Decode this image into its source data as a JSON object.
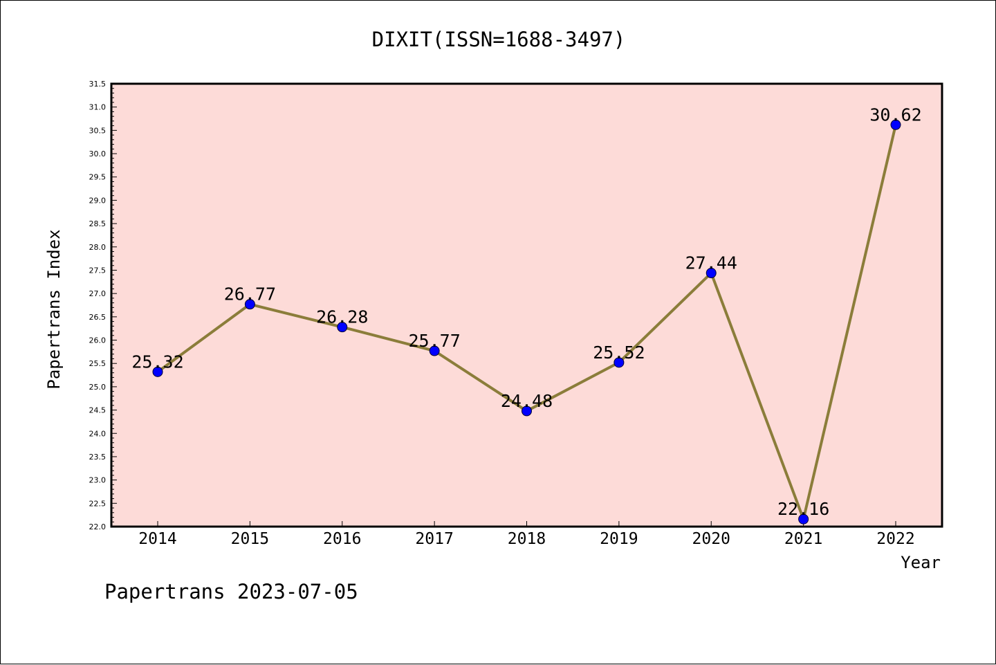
{
  "chart_data": {
    "type": "line",
    "title": "DIXIT(ISSN=1688-3497)",
    "xlabel": "Year",
    "ylabel": "Papertrans Index",
    "categories": [
      "2014",
      "2015",
      "2016",
      "2017",
      "2018",
      "2019",
      "2020",
      "2021",
      "2022"
    ],
    "series": [
      {
        "values": [
          25.32,
          26.77,
          26.28,
          25.77,
          24.48,
          25.52,
          27.44,
          22.16,
          30.62
        ]
      }
    ],
    "data_labels": [
      "25.32",
      "26.77",
      "26.28",
      "25.77",
      "24.48",
      "25.52",
      "27.44",
      "22.16",
      "30.62"
    ],
    "ylim": [
      22.0,
      31.5
    ],
    "y_ticks": [
      "22.0",
      "22.5",
      "23.0",
      "23.5",
      "24.0",
      "24.5",
      "25.0",
      "25.5",
      "26.0",
      "26.5",
      "27.0",
      "27.5",
      "28.0",
      "28.5",
      "29.0",
      "29.5",
      "30.0",
      "30.5",
      "31.0",
      "31.5"
    ],
    "grid": false,
    "legend": "none",
    "footer": "Papertrans 2023-07-05",
    "colors": {
      "plot_background": "#fddbd8",
      "line": "#8b7d3a",
      "marker": "#0000ff"
    }
  }
}
